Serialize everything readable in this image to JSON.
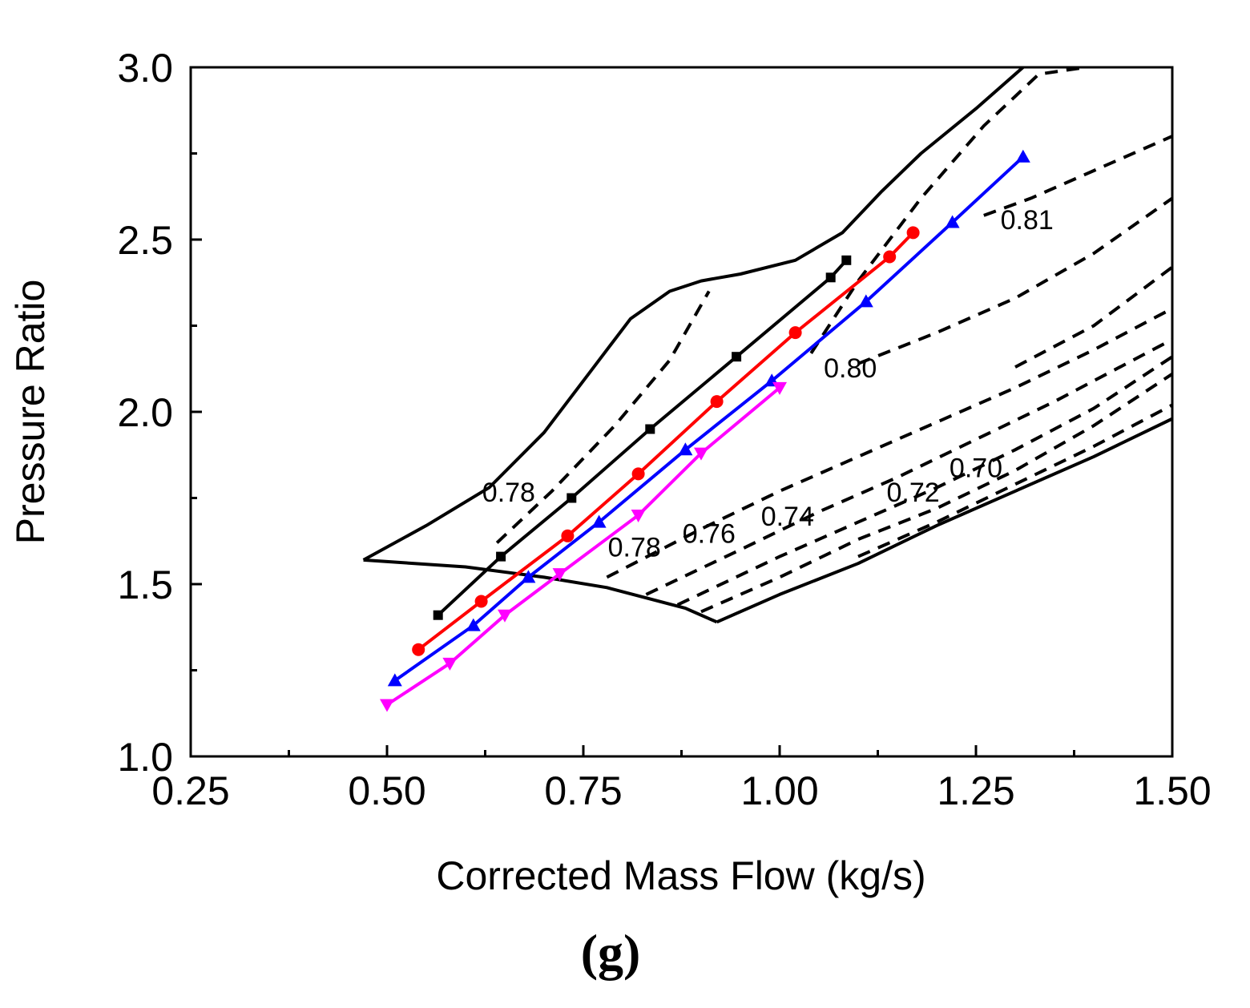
{
  "chart_data": {
    "type": "line",
    "title": "",
    "panel_label": "(g)",
    "xlabel": "Corrected Mass Flow (kg/s)",
    "ylabel": "Pressure Ratio",
    "xlim": [
      0.25,
      1.5
    ],
    "ylim": [
      1.0,
      3.0
    ],
    "x_ticks": [
      0.25,
      0.5,
      0.75,
      1.0,
      1.25,
      1.5
    ],
    "x_tick_labels": [
      "0.25",
      "0.50",
      "0.75",
      "1.00",
      "1.25",
      "1.50"
    ],
    "y_ticks": [
      1.0,
      1.5,
      2.0,
      2.5,
      3.0
    ],
    "y_tick_labels": [
      "1.0",
      "1.5",
      "2.0",
      "2.5",
      "3.0"
    ],
    "grid": false,
    "boundaries": [
      {
        "name": "surge-line",
        "x": [
          0.47,
          0.55,
          0.63,
          0.7,
          0.76,
          0.81,
          0.86,
          0.9,
          0.95,
          1.02,
          1.08,
          1.13,
          1.18,
          1.25,
          1.31
        ],
        "y": [
          1.57,
          1.67,
          1.78,
          1.94,
          2.12,
          2.27,
          2.35,
          2.38,
          2.4,
          2.44,
          2.52,
          2.64,
          2.75,
          2.88,
          3.0
        ]
      },
      {
        "name": "lower-envelope",
        "x": [
          0.47,
          0.6,
          0.7,
          0.78,
          0.83,
          0.88,
          0.92
        ],
        "y": [
          1.57,
          1.55,
          1.52,
          1.49,
          1.46,
          1.43,
          1.39
        ]
      },
      {
        "name": "choke-line",
        "x": [
          0.92,
          1.0,
          1.1,
          1.2,
          1.3,
          1.4,
          1.5
        ],
        "y": [
          1.39,
          1.47,
          1.56,
          1.67,
          1.77,
          1.87,
          1.98
        ]
      }
    ],
    "efficiency_contours": [
      {
        "label": "0.78",
        "x": [
          0.64,
          0.71,
          0.79,
          0.86,
          0.91
        ],
        "y": [
          1.62,
          1.77,
          1.96,
          2.15,
          2.35
        ]
      },
      {
        "label": "0.80",
        "x": [
          1.04,
          1.1,
          1.18,
          1.26,
          1.33,
          1.39
        ],
        "y": [
          2.17,
          2.38,
          2.62,
          2.83,
          2.98,
          3.0
        ]
      },
      {
        "label": "0.81",
        "x": [
          1.26,
          1.32,
          1.4,
          1.5
        ],
        "y": [
          2.57,
          2.62,
          2.7,
          2.8
        ]
      },
      {
        "label": "0.80",
        "x": [
          1.1,
          1.2,
          1.3,
          1.4,
          1.5
        ],
        "y": [
          2.14,
          2.23,
          2.33,
          2.46,
          2.62
        ]
      },
      {
        "label": "",
        "x": [
          1.3,
          1.4,
          1.5
        ],
        "y": [
          2.13,
          2.25,
          2.42
        ]
      },
      {
        "label": "0.78",
        "x": [
          0.78,
          0.9,
          1.0,
          1.1,
          1.2,
          1.3,
          1.4,
          1.5
        ],
        "y": [
          1.52,
          1.66,
          1.77,
          1.87,
          1.97,
          2.07,
          2.18,
          2.3
        ]
      },
      {
        "label": "0.76",
        "x": [
          0.83,
          0.95,
          1.05,
          1.15,
          1.25,
          1.35,
          1.45,
          1.5
        ],
        "y": [
          1.47,
          1.6,
          1.71,
          1.81,
          1.92,
          2.03,
          2.15,
          2.21
        ]
      },
      {
        "label": "0.74",
        "x": [
          0.87,
          1.0,
          1.1,
          1.2,
          1.3,
          1.4,
          1.5
        ],
        "y": [
          1.44,
          1.58,
          1.68,
          1.78,
          1.89,
          2.01,
          2.16
        ]
      },
      {
        "label": "0.72",
        "x": [
          0.9,
          1.0,
          1.1,
          1.2,
          1.3,
          1.4,
          1.5
        ],
        "y": [
          1.42,
          1.52,
          1.63,
          1.72,
          1.83,
          1.96,
          2.11
        ]
      },
      {
        "label": "0.70",
        "x": [
          1.1,
          1.2,
          1.3,
          1.4,
          1.5
        ],
        "y": [
          1.58,
          1.68,
          1.79,
          1.9,
          2.02
        ]
      }
    ],
    "series": [
      {
        "name": "speed-line-1",
        "color": "#000000",
        "marker": "square",
        "x": [
          0.565,
          0.645,
          0.735,
          0.835,
          0.945,
          1.065,
          1.085
        ],
        "y": [
          1.41,
          1.58,
          1.75,
          1.95,
          2.16,
          2.39,
          2.44
        ]
      },
      {
        "name": "speed-line-2",
        "color": "#ff0000",
        "marker": "circle",
        "x": [
          0.54,
          0.62,
          0.73,
          0.82,
          0.92,
          1.02,
          1.14,
          1.17
        ],
        "y": [
          1.31,
          1.45,
          1.64,
          1.82,
          2.03,
          2.23,
          2.45,
          2.52
        ]
      },
      {
        "name": "speed-line-3",
        "color": "#0000ff",
        "marker": "triangle-up",
        "x": [
          0.51,
          0.61,
          0.68,
          0.77,
          0.88,
          0.99,
          1.11,
          1.22,
          1.31
        ],
        "y": [
          1.22,
          1.38,
          1.52,
          1.68,
          1.89,
          2.09,
          2.32,
          2.55,
          2.74
        ]
      },
      {
        "name": "speed-line-4",
        "color": "#ff00ff",
        "marker": "triangle-down",
        "x": [
          0.5,
          0.58,
          0.65,
          0.72,
          0.82,
          0.9,
          1.0
        ],
        "y": [
          1.15,
          1.27,
          1.41,
          1.53,
          1.7,
          1.88,
          2.07
        ]
      }
    ],
    "annotations": [
      {
        "text": "0.78",
        "x": 0.655,
        "y": 1.74
      },
      {
        "text": "0.81",
        "x": 1.315,
        "y": 2.53
      },
      {
        "text": "0.80",
        "x": 1.09,
        "y": 2.1
      },
      {
        "text": "0.78",
        "x": 0.815,
        "y": 1.58
      },
      {
        "text": "0.76",
        "x": 0.91,
        "y": 1.62
      },
      {
        "text": "0.74",
        "x": 1.01,
        "y": 1.67
      },
      {
        "text": "0.72",
        "x": 1.17,
        "y": 1.74
      },
      {
        "text": "0.70",
        "x": 1.25,
        "y": 1.81
      }
    ]
  }
}
